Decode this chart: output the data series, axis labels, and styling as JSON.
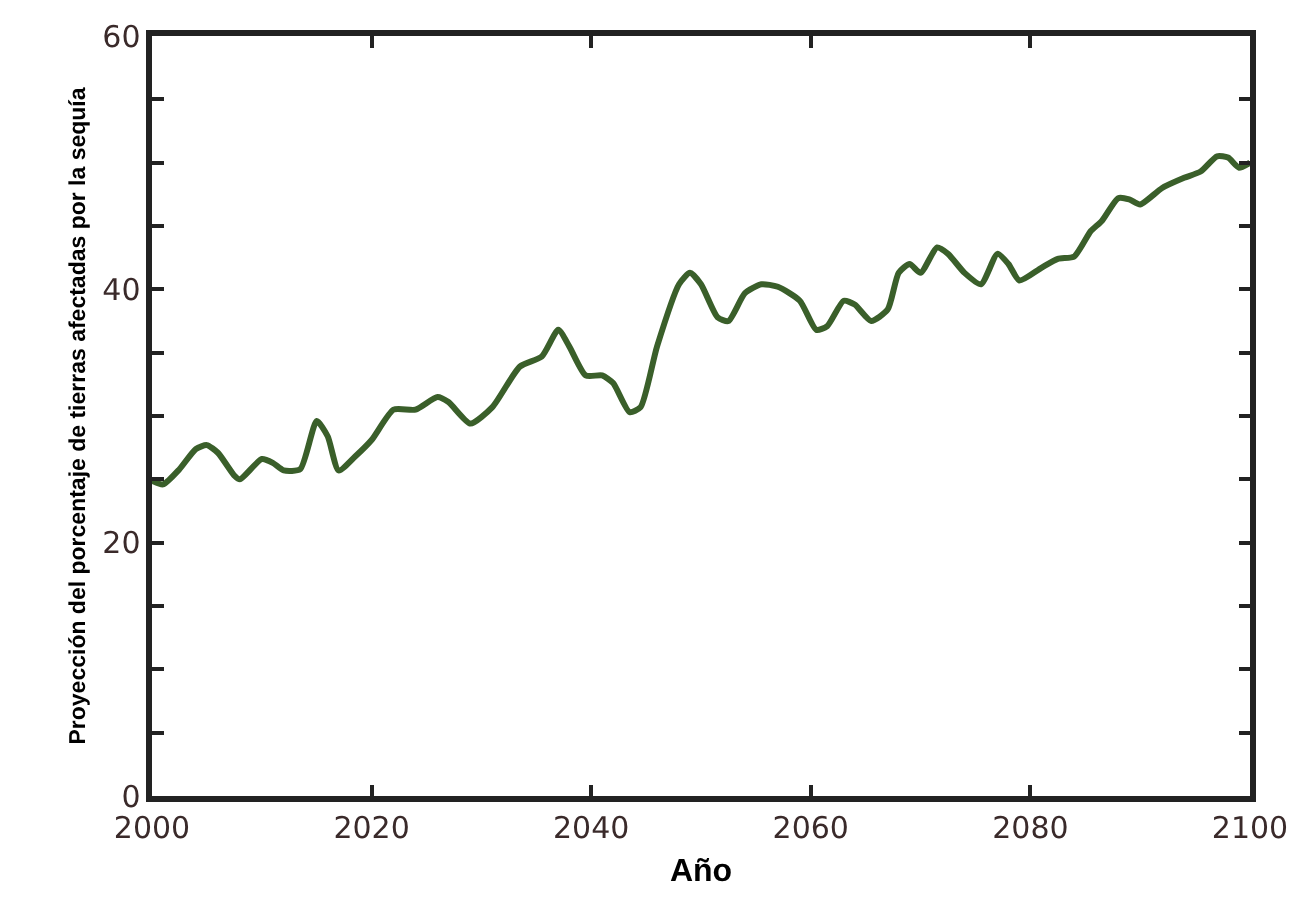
{
  "chart_data": {
    "type": "line",
    "xlabel": "Año",
    "ylabel": "Proyección del porcentaje de tierras afectadas por la sequía",
    "x": [
      2000,
      2001,
      2002.5,
      2004,
      2005,
      2006,
      2007.5,
      2008,
      2010,
      2011,
      2012,
      2013.5,
      2015,
      2016,
      2017,
      2018.5,
      2020,
      2022,
      2024,
      2026,
      2027,
      2029,
      2031,
      2033.5,
      2035.5,
      2037,
      2038,
      2039.5,
      2041,
      2042,
      2043.5,
      2044.5,
      2046,
      2048,
      2049,
      2050,
      2051.5,
      2052.5,
      2054,
      2055.5,
      2057,
      2059,
      2060.5,
      2061.5,
      2063,
      2064,
      2065.5,
      2067,
      2068,
      2069,
      2070,
      2071.5,
      2072.5,
      2074,
      2075.5,
      2077,
      2078,
      2079,
      2081,
      2082.5,
      2084,
      2085.5,
      2086.5,
      2088,
      2089,
      2090,
      2092,
      2094,
      2095.5,
      2097,
      2098,
      2099,
      2100
    ],
    "series": [
      {
        "color": "#3a5f2a",
        "values": [
          24.9,
          24.6,
          25.8,
          27.4,
          27.7,
          27.1,
          25.3,
          25.0,
          26.6,
          26.3,
          25.7,
          25.8,
          29.6,
          28.4,
          25.7,
          26.8,
          28.1,
          30.5,
          30.5,
          31.5,
          31.1,
          29.4,
          30.7,
          33.9,
          34.7,
          36.8,
          35.5,
          33.2,
          33.2,
          32.6,
          30.3,
          30.7,
          35.5,
          40.4,
          41.3,
          40.4,
          37.8,
          37.5,
          39.7,
          40.4,
          40.2,
          39.1,
          36.8,
          37.1,
          39.1,
          38.8,
          37.5,
          38.4,
          41.3,
          42.0,
          41.3,
          43.3,
          42.8,
          41.3,
          40.4,
          42.8,
          42.0,
          40.7,
          41.7,
          42.4,
          42.6,
          44.6,
          45.4,
          47.2,
          47.1,
          46.7,
          48.0,
          48.8,
          49.3,
          50.5,
          50.4,
          49.6,
          50.0
        ]
      }
    ],
    "xlim": [
      2000,
      2100
    ],
    "xticks": [
      2000,
      2020,
      2040,
      2060,
      2080,
      2100
    ],
    "ylim": [
      0,
      60
    ],
    "yticks": [
      0,
      {
        "value": 5,
        "label": null
      },
      {
        "value": 10,
        "label": null
      },
      {
        "value": 15,
        "label": null
      },
      20,
      {
        "value": 25,
        "label": null
      },
      {
        "value": 30,
        "label": null
      },
      {
        "value": 35,
        "label": null
      },
      40,
      {
        "value": 45,
        "label": null
      },
      {
        "value": 50,
        "label": null
      },
      {
        "value": 55,
        "label": null
      },
      60
    ],
    "grid": false,
    "marker": "none",
    "line_style": "solid"
  }
}
